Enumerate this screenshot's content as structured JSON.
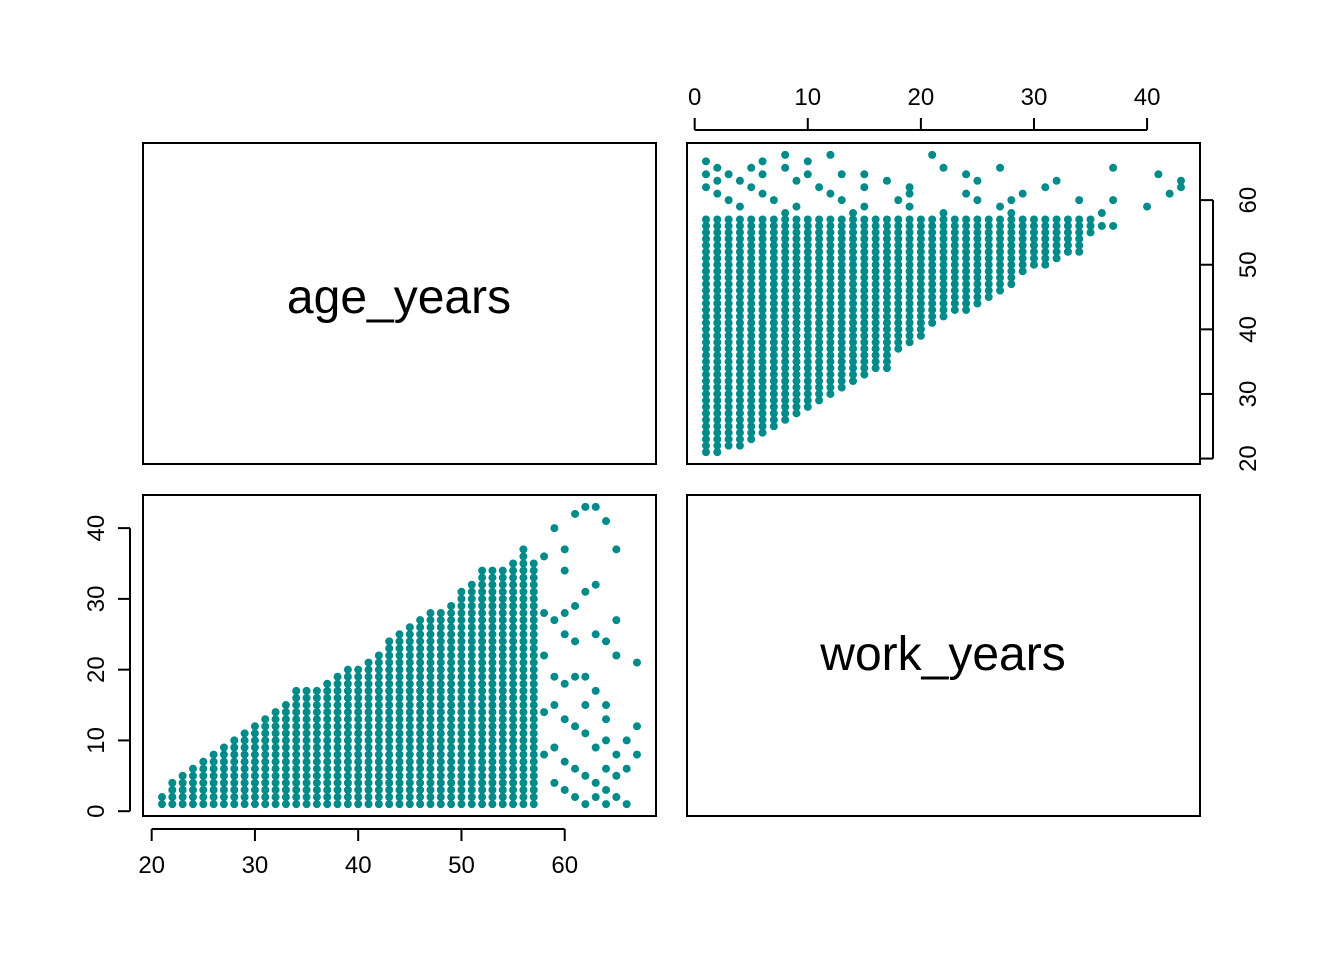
{
  "chart_data": {
    "type": "scatter",
    "kind": "pairs-matrix",
    "variables": [
      "age_years",
      "work_years"
    ],
    "point_color": "#008B8B",
    "diagonal_labels": [
      "age_years",
      "work_years"
    ],
    "axes": {
      "age_years": {
        "range": [
          21,
          67
        ],
        "ticks": [
          20,
          30,
          40,
          50,
          60
        ],
        "tick_labels": [
          "20",
          "30",
          "40",
          "50",
          "60"
        ]
      },
      "work_years": {
        "range": [
          1,
          43
        ],
        "ticks": [
          0,
          10,
          20,
          30,
          40
        ],
        "tick_labels": [
          "0",
          "10",
          "20",
          "30",
          "40"
        ]
      }
    },
    "panels": [
      {
        "id": "age-vs-work",
        "x_var": "work_years",
        "y_var": "age_years",
        "note": "upper panel: x = work_years, y = age_years"
      },
      {
        "id": "work-vs-age",
        "x_var": "age_years",
        "y_var": "work_years",
        "note": "lower panel: x = age_years, y = work_years"
      }
    ],
    "point_region": {
      "age_min": 21,
      "age_max": 67,
      "work_min": 1,
      "work_max_by_age": [
        [
          21,
          2
        ],
        [
          22,
          4
        ],
        [
          23,
          5
        ],
        [
          24,
          6
        ],
        [
          25,
          7
        ],
        [
          26,
          8
        ],
        [
          27,
          9
        ],
        [
          28,
          10
        ],
        [
          29,
          11
        ],
        [
          30,
          12
        ],
        [
          31,
          13
        ],
        [
          32,
          14
        ],
        [
          33,
          15
        ],
        [
          34,
          17
        ],
        [
          35,
          17
        ],
        [
          36,
          17
        ],
        [
          37,
          18
        ],
        [
          38,
          19
        ],
        [
          39,
          20
        ],
        [
          40,
          20
        ],
        [
          41,
          21
        ],
        [
          42,
          22
        ],
        [
          43,
          24
        ],
        [
          44,
          25
        ],
        [
          45,
          26
        ],
        [
          46,
          27
        ],
        [
          47,
          28
        ],
        [
          48,
          28
        ],
        [
          49,
          29
        ],
        [
          50,
          31
        ],
        [
          51,
          32
        ],
        [
          52,
          34
        ],
        [
          53,
          34
        ],
        [
          54,
          34
        ],
        [
          55,
          35
        ],
        [
          56,
          37
        ],
        [
          57,
          35
        ],
        [
          58,
          36
        ],
        [
          59,
          40
        ],
        [
          60,
          37
        ],
        [
          61,
          42
        ],
        [
          62,
          43
        ],
        [
          63,
          43
        ],
        [
          64,
          41
        ],
        [
          65,
          37
        ],
        [
          66,
          10
        ],
        [
          67,
          21
        ]
      ],
      "dense_up_to_age": 57,
      "sparse_points_age_work": [
        [
          58,
          28
        ],
        [
          58,
          22
        ],
        [
          58,
          14
        ],
        [
          58,
          8
        ],
        [
          59,
          27
        ],
        [
          59,
          19
        ],
        [
          59,
          15
        ],
        [
          59,
          9
        ],
        [
          59,
          4
        ],
        [
          60,
          34
        ],
        [
          60,
          28
        ],
        [
          60,
          25
        ],
        [
          60,
          18
        ],
        [
          60,
          13
        ],
        [
          60,
          7
        ],
        [
          60,
          3
        ],
        [
          61,
          29
        ],
        [
          61,
          24
        ],
        [
          61,
          19
        ],
        [
          61,
          12
        ],
        [
          61,
          6
        ],
        [
          61,
          2
        ],
        [
          62,
          31
        ],
        [
          62,
          19
        ],
        [
          62,
          15
        ],
        [
          62,
          11
        ],
        [
          62,
          5
        ],
        [
          62,
          1
        ],
        [
          63,
          32
        ],
        [
          63,
          25
        ],
        [
          63,
          17
        ],
        [
          63,
          9
        ],
        [
          63,
          4
        ],
        [
          63,
          2
        ],
        [
          64,
          24
        ],
        [
          64,
          15
        ],
        [
          64,
          13
        ],
        [
          64,
          10
        ],
        [
          64,
          6
        ],
        [
          64,
          3
        ],
        [
          64,
          1
        ],
        [
          65,
          27
        ],
        [
          65,
          22
        ],
        [
          65,
          8
        ],
        [
          65,
          5
        ],
        [
          65,
          2
        ],
        [
          66,
          6
        ],
        [
          66,
          1
        ],
        [
          67,
          12
        ],
        [
          67,
          8
        ]
      ]
    }
  }
}
